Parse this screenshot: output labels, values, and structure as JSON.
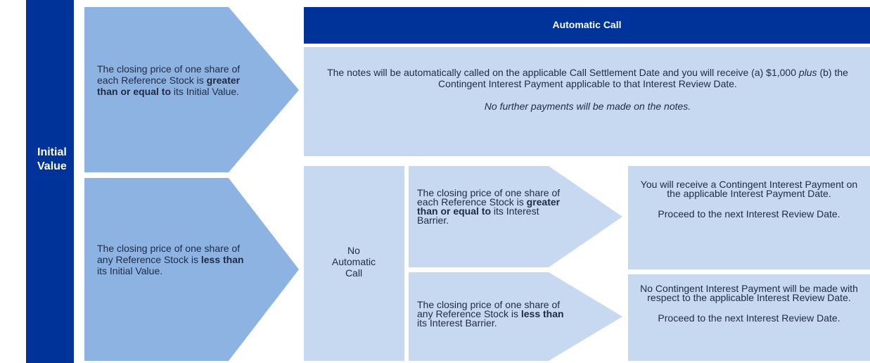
{
  "left_label": "Initial Value",
  "top_condition": {
    "before": "The closing price of one share of each Reference Stock is ",
    "bold": "greater than or equal to",
    "after": " its Initial Value."
  },
  "automatic_call": {
    "title": "Automatic Call",
    "body": {
      "before": "The notes will be automatically called on the applicable Call Settlement Date and you will receive (a) $1,000 ",
      "italic": "plus",
      "after": " (b) the Contingent Interest Payment applicable to that Interest Review Date."
    },
    "note": "No further payments will be made on the notes."
  },
  "bottom_condition": {
    "before": "The closing price of one share of any Reference Stock is ",
    "bold": "less than",
    "after": " its Initial Value."
  },
  "no_call": "No Automatic Call",
  "interest_conditions": [
    {
      "before": "The closing price of one share of each Reference Stock is ",
      "bold": "greater than or equal to",
      "after": " its Interest Barrier."
    },
    {
      "before": "The closing price of one share of any Reference Stock is ",
      "bold": "less than",
      "after": " its Interest Barrier."
    }
  ],
  "outcomes": [
    {
      "text": "You will receive a Contingent Interest Payment on the applicable Interest Payment Date.",
      "next": "Proceed to the next Interest Review Date."
    },
    {
      "text": "No Contingent Interest Payment will be made with respect to the applicable Interest Review Date.",
      "next": "Proceed to the next Interest Review Date."
    }
  ]
}
